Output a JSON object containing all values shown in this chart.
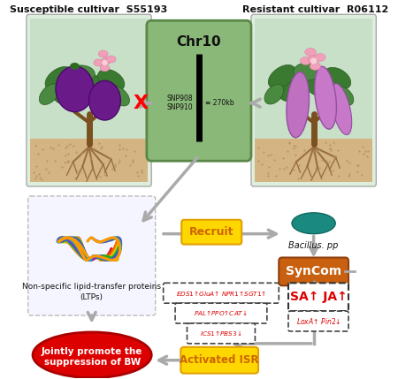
{
  "title_left": "Susceptible cultivar  S55193",
  "title_right": "Resistant cultivar  R06112",
  "chr_label": "Chr10",
  "snp_label": "SNP908\nSNP910",
  "kb_label": "≡ 270kb",
  "recruit_label": "Recruit",
  "bacillus_label": "Bacillus. pp",
  "syncom_label": "SynCom",
  "ltp_title": "Non-specific lipid-transfer proteins",
  "ltp_subtitle": "(LTPs)",
  "jointly_line1": "Jointly promote the",
  "jointly_line2": "suppression of BW",
  "activated_label": "Activated ISR",
  "bg_color": "#ffffff",
  "plant_box_color": "#d8edd8",
  "plant_box_edge": "#aaaaaa",
  "chr_box_color": "#8ab87a",
  "chr_box_edge": "#5a8a4a",
  "recruit_box_color": "#ffd700",
  "recruit_box_edge": "#e0a000",
  "syncom_box_color": "#c86010",
  "activated_box_color": "#ffd700",
  "activated_box_edge": "#e0a000",
  "jointly_fill": "#dd0000",
  "jointly_edge": "#aa0000",
  "arrow_color": "#aaaaaa",
  "red_color": "#dd0000",
  "black_color": "#111111",
  "orange_color": "#cc6600",
  "white_color": "#ffffff",
  "ltp_box_edge": "#aaaaaa",
  "gene_box_edge": "#333333",
  "dashed_box_edge": "#444444"
}
